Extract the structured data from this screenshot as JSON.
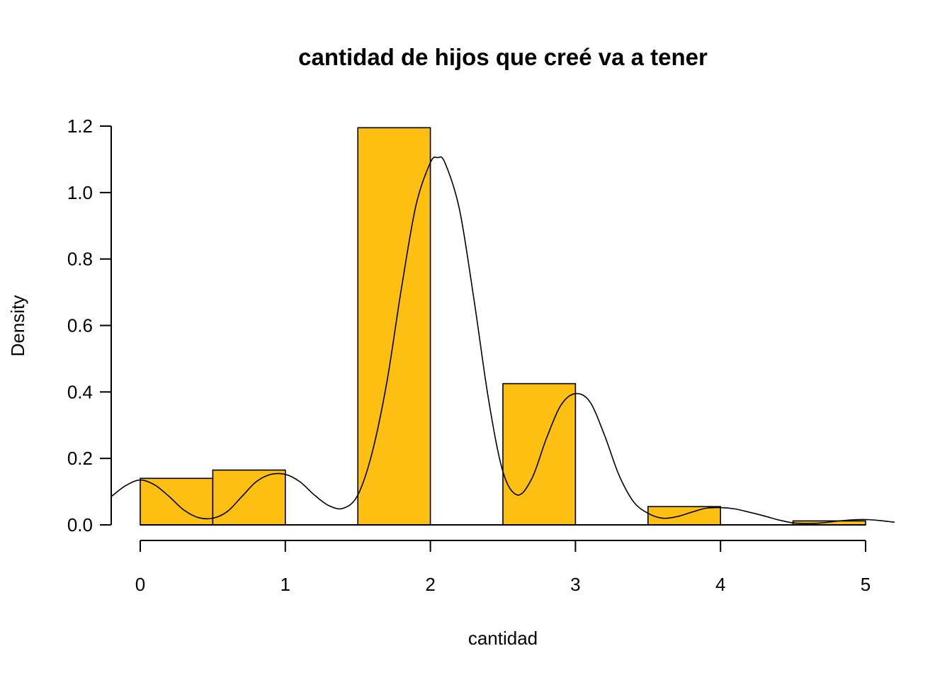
{
  "chart_data": {
    "type": "bar",
    "title": "cantidad de hijos que creé va a tener",
    "xlabel": "cantidad",
    "ylabel": "Density",
    "xlim": [
      -0.2,
      5.2
    ],
    "ylim": [
      0,
      1.2
    ],
    "x_ticks": [
      0,
      1,
      2,
      3,
      4,
      5
    ],
    "x_tick_labels": [
      "0",
      "1",
      "2",
      "3",
      "4",
      "5"
    ],
    "y_ticks": [
      0.0,
      0.2,
      0.4,
      0.6,
      0.8,
      1.0,
      1.2
    ],
    "y_tick_labels": [
      "0.0",
      "0.2",
      "0.4",
      "0.6",
      "0.8",
      "1.0",
      "1.2"
    ],
    "bar_color": "#FDBF11",
    "bins": [
      {
        "start": 0.0,
        "end": 0.5,
        "density": 0.14
      },
      {
        "start": 0.5,
        "end": 1.0,
        "density": 0.165
      },
      {
        "start": 1.0,
        "end": 1.5,
        "density": 0.0
      },
      {
        "start": 1.5,
        "end": 2.0,
        "density": 1.195
      },
      {
        "start": 2.0,
        "end": 2.5,
        "density": 0.0
      },
      {
        "start": 2.5,
        "end": 3.0,
        "density": 0.425
      },
      {
        "start": 3.0,
        "end": 3.5,
        "density": 0.0
      },
      {
        "start": 3.5,
        "end": 4.0,
        "density": 0.055
      },
      {
        "start": 4.0,
        "end": 4.5,
        "density": 0.0
      },
      {
        "start": 4.5,
        "end": 5.0,
        "density": 0.012
      }
    ],
    "density_curve": {
      "x": [
        -0.2,
        -0.1,
        0.0,
        0.1,
        0.2,
        0.3,
        0.4,
        0.5,
        0.6,
        0.7,
        0.8,
        0.9,
        1.0,
        1.1,
        1.2,
        1.3,
        1.4,
        1.5,
        1.6,
        1.7,
        1.8,
        1.9,
        2.0,
        2.05,
        2.1,
        2.2,
        2.3,
        2.4,
        2.5,
        2.6,
        2.7,
        2.8,
        2.9,
        3.0,
        3.1,
        3.2,
        3.3,
        3.4,
        3.5,
        3.6,
        3.7,
        3.8,
        3.9,
        4.0,
        4.1,
        4.2,
        4.3,
        4.4,
        4.5,
        4.6,
        4.7,
        4.8,
        4.9,
        5.0,
        5.1,
        5.2
      ],
      "y": [
        0.085,
        0.118,
        0.135,
        0.12,
        0.085,
        0.045,
        0.022,
        0.02,
        0.04,
        0.085,
        0.13,
        0.152,
        0.152,
        0.13,
        0.09,
        0.058,
        0.05,
        0.09,
        0.22,
        0.43,
        0.71,
        0.96,
        1.09,
        1.105,
        1.09,
        0.95,
        0.68,
        0.38,
        0.16,
        0.09,
        0.14,
        0.26,
        0.36,
        0.395,
        0.37,
        0.27,
        0.15,
        0.07,
        0.035,
        0.02,
        0.025,
        0.038,
        0.05,
        0.052,
        0.048,
        0.038,
        0.027,
        0.015,
        0.006,
        0.004,
        0.006,
        0.011,
        0.015,
        0.016,
        0.013,
        0.008
      ]
    }
  }
}
